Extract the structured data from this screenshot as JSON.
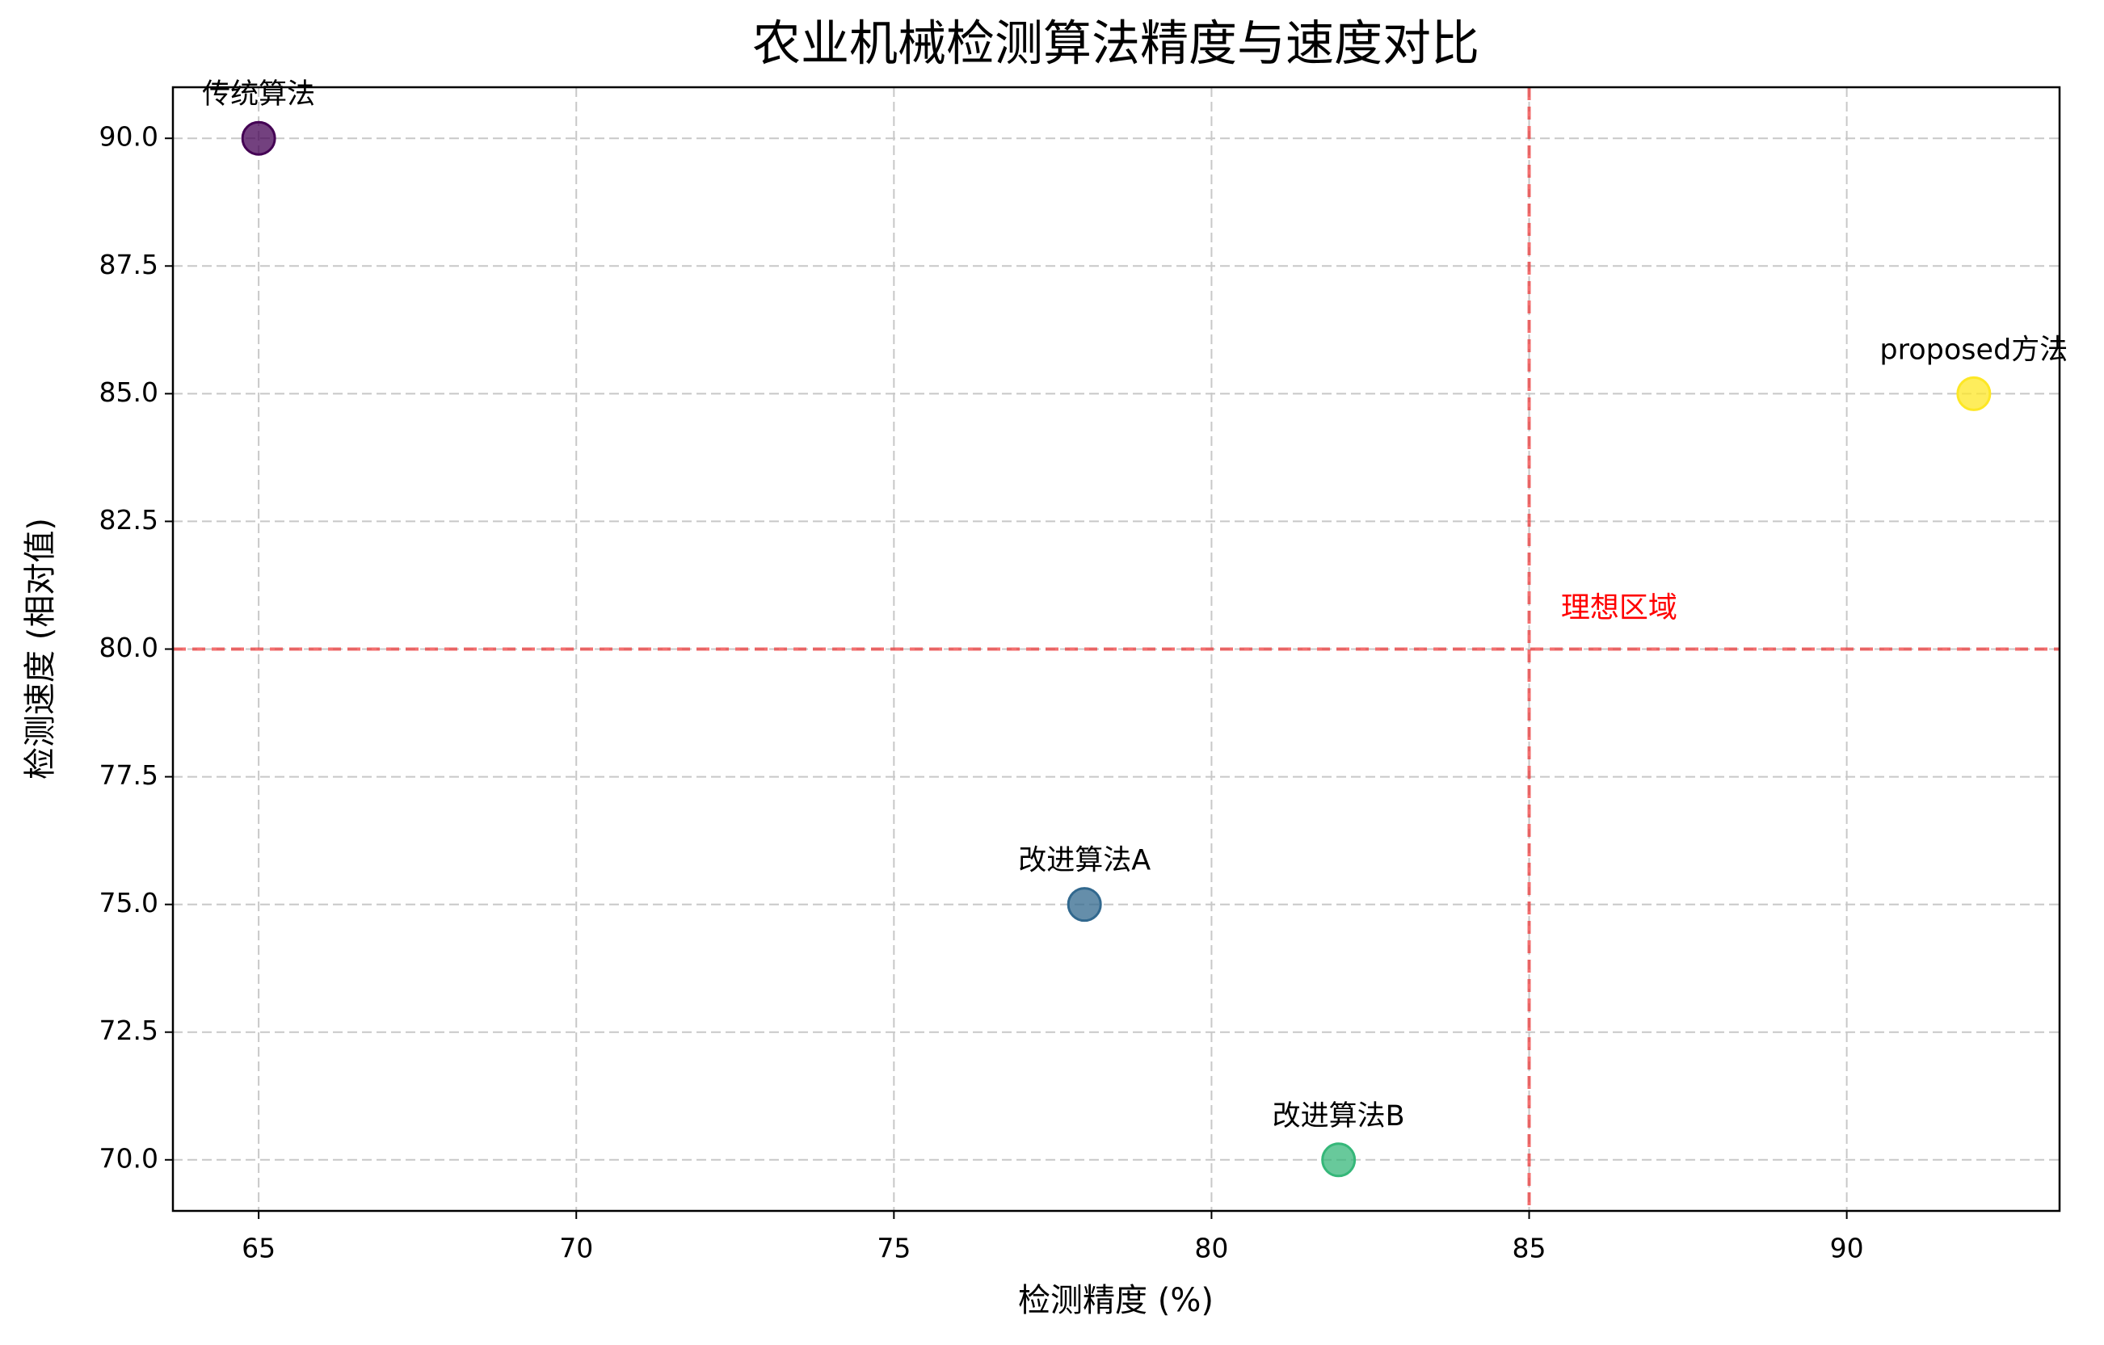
{
  "chart_data": {
    "type": "scatter",
    "title": "农业机械检测算法精度与速度对比",
    "x_label": "检测精度 (%)",
    "y_label": "检测速度 (相对值)",
    "labels": [
      "传统算法",
      "改进算法A",
      "改进算法B",
      "proposed方法"
    ],
    "x": [
      65,
      78,
      82,
      92
    ],
    "values": [
      90,
      75,
      70,
      85
    ],
    "colors": [
      "#440154",
      "#31688e",
      "#35b779",
      "#fde725"
    ],
    "xlim": [
      63.65,
      93.35
    ],
    "ylim": [
      69,
      91
    ],
    "xticks": [
      65,
      70,
      75,
      80,
      85,
      90
    ],
    "yticks": [
      {
        "value": 70,
        "label": "70.0"
      },
      {
        "value": 72.5,
        "label": "72.5"
      },
      {
        "value": 75,
        "label": "75.0"
      },
      {
        "value": 77.5,
        "label": "77.5"
      },
      {
        "value": 80,
        "label": "80.0"
      },
      {
        "value": 82.5,
        "label": "82.5"
      },
      {
        "value": 85,
        "label": "85.0"
      },
      {
        "value": 87.5,
        "label": "87.5"
      },
      {
        "value": 90,
        "label": "90.0"
      }
    ],
    "grid": true,
    "reference_lines": {
      "x": 85,
      "y": 80,
      "color": "#ee3333"
    },
    "annotation": {
      "text": "理想区域",
      "x": 85.5,
      "y": 80.5,
      "color": "#ff0000"
    }
  }
}
